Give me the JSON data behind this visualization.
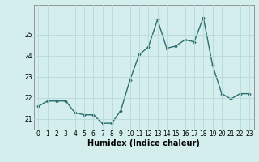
{
  "x": [
    0,
    1,
    2,
    3,
    4,
    5,
    6,
    7,
    8,
    9,
    10,
    11,
    12,
    13,
    14,
    15,
    16,
    17,
    18,
    19,
    20,
    21,
    22,
    23
  ],
  "y": [
    21.6,
    21.85,
    21.85,
    21.85,
    21.3,
    21.2,
    21.2,
    20.8,
    20.8,
    21.4,
    22.85,
    24.05,
    24.4,
    25.7,
    24.35,
    24.45,
    24.75,
    24.65,
    25.8,
    23.55,
    22.2,
    21.95,
    22.2,
    22.2
  ],
  "line_color": "#2d6e6e",
  "marker": "D",
  "marker_size": 1.8,
  "linewidth": 1.0,
  "bg_color": "#d4eeee",
  "grid_color": "#b8d8d8",
  "xlabel": "Humidex (Indice chaleur)",
  "xlabel_fontsize": 7.0,
  "ylim": [
    20.5,
    26.4
  ],
  "yticks": [
    21,
    22,
    23,
    24,
    25
  ],
  "xticks": [
    0,
    1,
    2,
    3,
    4,
    5,
    6,
    7,
    8,
    9,
    10,
    11,
    12,
    13,
    14,
    15,
    16,
    17,
    18,
    19,
    20,
    21,
    22,
    23
  ],
  "tick_fontsize": 5.5
}
